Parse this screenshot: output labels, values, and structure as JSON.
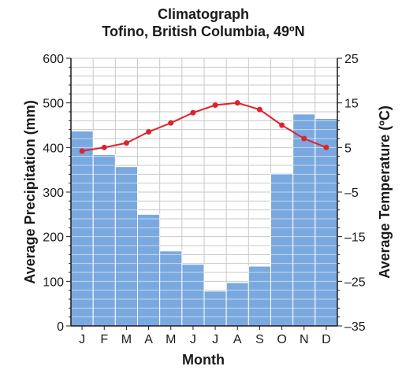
{
  "chart_data": {
    "type": "bar",
    "title": "Climatograph",
    "subtitle": "Tofino, British Columbia, 49ºN",
    "xlabel": "Month",
    "ylabel_left": "Average Precipitation (mm)",
    "ylabel_right": "Average Temperature (ºC)",
    "categories": [
      "J",
      "F",
      "M",
      "A",
      "M",
      "J",
      "J",
      "A",
      "S",
      "O",
      "N",
      "D"
    ],
    "precip_ylim": [
      0,
      600
    ],
    "precip_ticks": [
      0,
      100,
      200,
      300,
      400,
      500,
      600
    ],
    "temp_ylim": [
      -35,
      25
    ],
    "temp_ticks": [
      25,
      15,
      5,
      "–5",
      "–15",
      "–25",
      "–35"
    ],
    "grid": true,
    "series": [
      {
        "kind": "bar",
        "axis": "left",
        "values": [
          437,
          384,
          357,
          250,
          168,
          138,
          78,
          97,
          134,
          342,
          475,
          465
        ]
      },
      {
        "kind": "line",
        "axis": "right",
        "values": [
          4.2,
          5.0,
          6.0,
          8.5,
          10.5,
          12.8,
          14.5,
          15.0,
          13.5,
          10.0,
          7.0,
          5.0
        ]
      }
    ],
    "colors": {
      "bar_fill": "#7aa9df",
      "bar_edge": "#ffffff",
      "line": "#e0222d",
      "grid": "#c9c9c9",
      "axis": "#1a1a1a"
    }
  }
}
